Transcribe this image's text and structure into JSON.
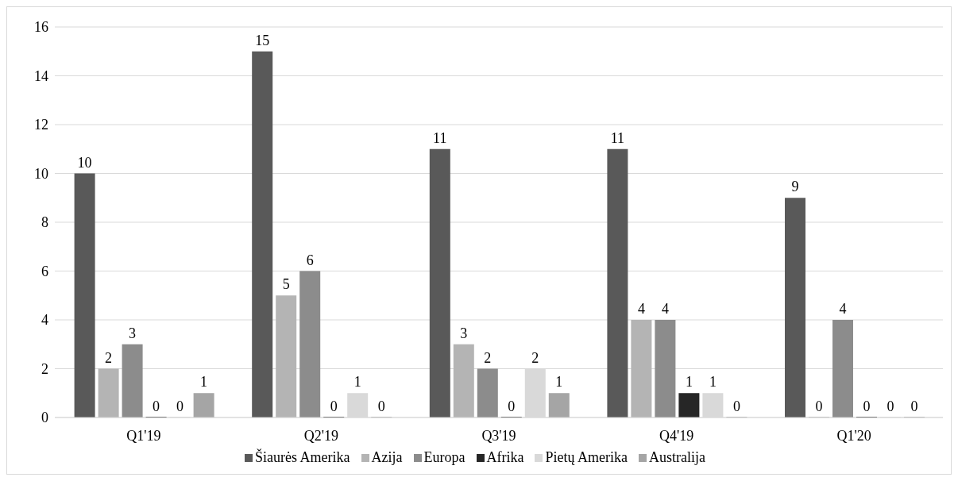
{
  "chart_data": {
    "type": "bar",
    "categories": [
      "Q1'19",
      "Q2'19",
      "Q3'19",
      "Q4'19",
      "Q1'20"
    ],
    "series": [
      {
        "name": "Šiaurės Amerika",
        "color": "#595959",
        "values": [
          10,
          15,
          11,
          11,
          9
        ]
      },
      {
        "name": "Azija",
        "color": "#b4b4b4",
        "values": [
          2,
          5,
          3,
          4,
          0
        ]
      },
      {
        "name": "Europa",
        "color": "#8c8c8c",
        "values": [
          3,
          6,
          2,
          4,
          4
        ]
      },
      {
        "name": "Afrika",
        "color": "#262626",
        "values": [
          0,
          0,
          0,
          1,
          0
        ]
      },
      {
        "name": "Pietų Amerika",
        "color": "#d9d9d9",
        "values": [
          0,
          1,
          2,
          1,
          0
        ]
      },
      {
        "name": "Australija",
        "color": "#a5a5a5",
        "values": [
          1,
          0,
          1,
          0,
          0
        ]
      }
    ],
    "ylim": [
      0,
      16
    ],
    "yticks": [
      0,
      2,
      4,
      6,
      8,
      10,
      12,
      14,
      16
    ],
    "grid": "y",
    "legend": "bottom",
    "data_labels": true
  }
}
